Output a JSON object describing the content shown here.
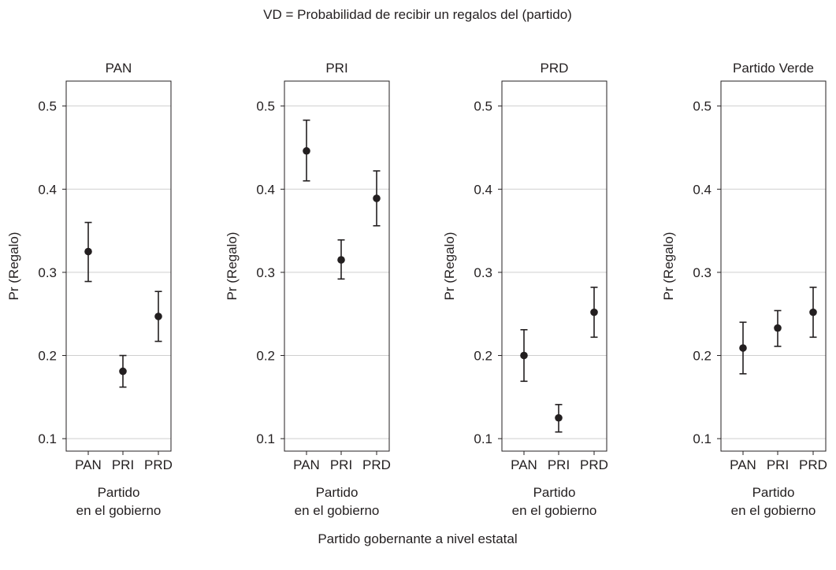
{
  "figure": {
    "title": "VD = Probabilidad de recibir un regalos del (partido)",
    "footer": "Partido gobernante a nivel estatal"
  },
  "chart_data": [
    {
      "type": "scatter",
      "title": "PAN",
      "ylabel": "Pr (Regalo)",
      "xlabel_lines": [
        "Partido",
        "en el gobierno"
      ],
      "categories": [
        "PAN",
        "PRI",
        "PRD"
      ],
      "yticks": [
        "0.1",
        "0.2",
        "0.3",
        "0.4",
        "0.5"
      ],
      "ylim": [
        0.085,
        0.53
      ],
      "grid": true,
      "values": [
        0.325,
        0.181,
        0.247
      ],
      "lower": [
        0.289,
        0.162,
        0.217
      ],
      "upper": [
        0.36,
        0.2,
        0.277
      ]
    },
    {
      "type": "scatter",
      "title": "PRI",
      "ylabel": "Pr (Regalo)",
      "xlabel_lines": [
        "Partido",
        "en el gobierno"
      ],
      "categories": [
        "PAN",
        "PRI",
        "PRD"
      ],
      "yticks": [
        "0.1",
        "0.2",
        "0.3",
        "0.4",
        "0.5"
      ],
      "ylim": [
        0.085,
        0.53
      ],
      "grid": true,
      "values": [
        0.446,
        0.315,
        0.389
      ],
      "lower": [
        0.41,
        0.292,
        0.356
      ],
      "upper": [
        0.483,
        0.339,
        0.422
      ]
    },
    {
      "type": "scatter",
      "title": "PRD",
      "ylabel": "Pr (Regalo)",
      "xlabel_lines": [
        "Partido",
        "en el gobierno"
      ],
      "categories": [
        "PAN",
        "PRI",
        "PRD"
      ],
      "yticks": [
        "0.1",
        "0.2",
        "0.3",
        "0.4",
        "0.5"
      ],
      "ylim": [
        0.085,
        0.53
      ],
      "grid": true,
      "values": [
        0.2,
        0.125,
        0.252
      ],
      "lower": [
        0.169,
        0.108,
        0.222
      ],
      "upper": [
        0.231,
        0.141,
        0.282
      ]
    },
    {
      "type": "scatter",
      "title": "Partido Verde",
      "ylabel": "Pr (Regalo)",
      "xlabel_lines": [
        "Partido",
        "en el gobierno"
      ],
      "categories": [
        "PAN",
        "PRI",
        "PRD"
      ],
      "yticks": [
        "0.1",
        "0.2",
        "0.3",
        "0.4",
        "0.5"
      ],
      "ylim": [
        0.085,
        0.53
      ],
      "grid": true,
      "values": [
        0.209,
        0.233,
        0.252
      ],
      "lower": [
        0.178,
        0.211,
        0.222
      ],
      "upper": [
        0.24,
        0.254,
        0.282
      ]
    }
  ]
}
